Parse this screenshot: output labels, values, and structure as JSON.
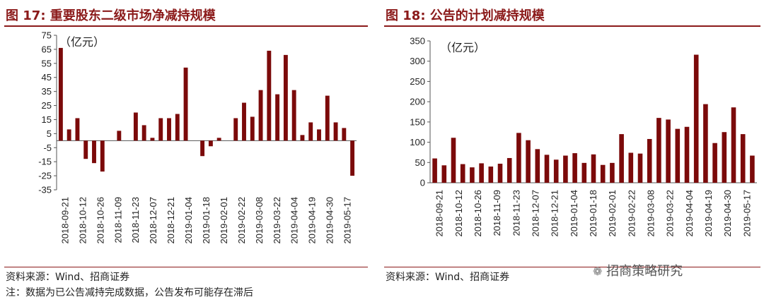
{
  "left_panel": {
    "title": "图 17:  重要股东二级市场净减持规模",
    "unit": "（亿元）",
    "source": "资料来源：Wind、招商证券",
    "note": "注：数据为已公告减持完成数据，公告发布可能存在滞后"
  },
  "right_panel": {
    "title": "图 18:  公告的计划减持规模",
    "unit": "（亿元）",
    "source": "资料来源：Wind、招商证券",
    "watermark": "招商策略研究"
  },
  "colors": {
    "bar": "#7B0A0A",
    "title": "#8B1A1A",
    "rule": "#8B1A1A"
  },
  "chart_data": [
    {
      "type": "bar",
      "title": "",
      "ylim": [
        -35,
        75
      ],
      "yticks": [
        -35,
        -25,
        -15,
        -5,
        5,
        15,
        25,
        35,
        45,
        55,
        65,
        75
      ],
      "ytick_labels": [
        "-35",
        "-25",
        "-15",
        "-5",
        "5",
        "15",
        "25",
        "35",
        "45",
        "55",
        "65",
        "75"
      ],
      "xtick_labels": [
        "2018-09-21",
        "2018-10-12",
        "2018-10-26",
        "2018-11-09",
        "2018-11-23",
        "2018-12-07",
        "2018-12-21",
        "2019-01-04",
        "2019-01-18",
        "2019-02-01",
        "2019-02-22",
        "2019-03-08",
        "2019-03-22",
        "2019-04-04",
        "2019-04-19",
        "2019-04-30",
        "2019-05-17"
      ],
      "values": [
        66,
        8,
        16,
        -13,
        -16,
        -22,
        0,
        7,
        0,
        20,
        11,
        2,
        16,
        16,
        19,
        52,
        0,
        -11,
        -4,
        2,
        0,
        16,
        27,
        17,
        36,
        64,
        33,
        61,
        36,
        4,
        13,
        8,
        32,
        13,
        9,
        -25
      ]
    },
    {
      "type": "bar",
      "title": "",
      "ylim": [
        0,
        350
      ],
      "yticks": [
        0,
        50,
        100,
        150,
        200,
        250,
        300,
        350
      ],
      "ytick_labels": [
        "0",
        "50",
        "100",
        "150",
        "200",
        "250",
        "300",
        "350"
      ],
      "xtick_labels": [
        "2018-09-21",
        "2018-10-12",
        "2018-10-26",
        "2018-11-09",
        "2018-11-23",
        "2018-12-07",
        "2018-12-21",
        "2019-01-04",
        "2019-01-18",
        "2019-02-01",
        "2019-02-22",
        "2019-03-08",
        "2019-03-22",
        "2019-04-04",
        "2019-04-19",
        "2019-04-30",
        "2019-05-17"
      ],
      "values": [
        60,
        43,
        111,
        46,
        38,
        48,
        40,
        47,
        61,
        123,
        105,
        83,
        69,
        57,
        67,
        73,
        49,
        70,
        44,
        49,
        120,
        74,
        72,
        108,
        160,
        156,
        133,
        138,
        316,
        194,
        98,
        125,
        186,
        120,
        67
      ]
    }
  ]
}
